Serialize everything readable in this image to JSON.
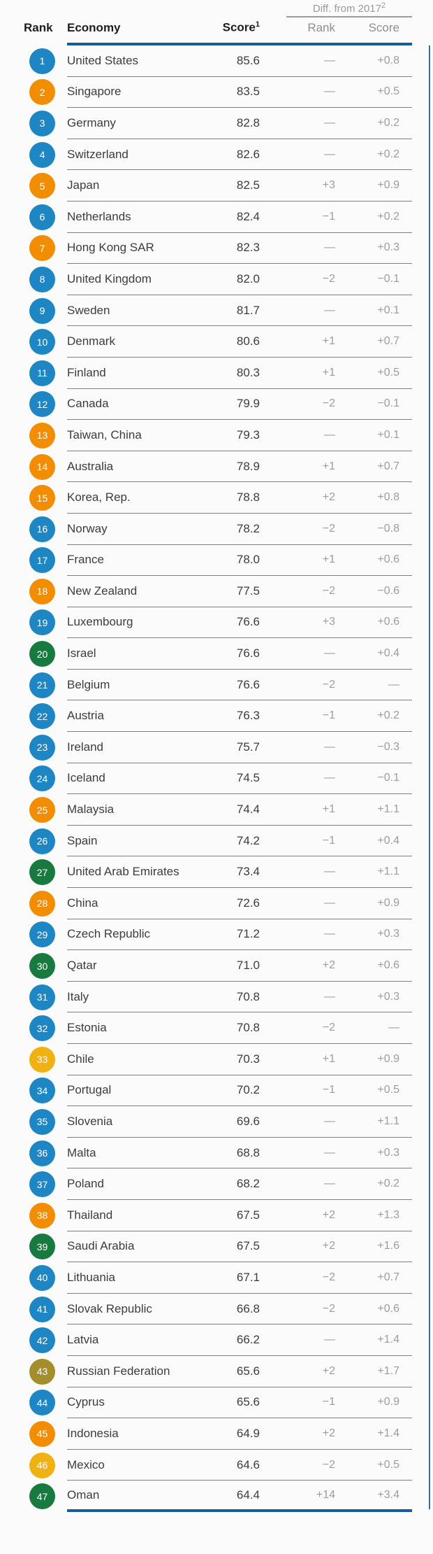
{
  "header": {
    "rank": "Rank",
    "economy": "Economy",
    "score": "Score",
    "score_sup": "1",
    "diff_label": "Diff. from 2017",
    "diff_sup": "2",
    "diff_rank": "Rank",
    "diff_score": "Score"
  },
  "colors": {
    "blue": "#1f86c4",
    "orange": "#f28d00",
    "green": "#187a3e",
    "yellow": "#f0b212",
    "olive": "#a48e2c",
    "rule_blue": "#1a5c96",
    "separator_gray": "#7f7f7f",
    "diff_text_gray": "#9c9c9c"
  },
  "chart_data": {
    "type": "table",
    "columns": [
      "Rank",
      "Economy",
      "Score1",
      "Diff. from 2017 Rank",
      "Diff. from 2017 Score"
    ],
    "rows": [
      {
        "rank": "1",
        "economy": "United States",
        "score": "85.6",
        "diff_rank": "—",
        "diff_score": "+0.8",
        "color": "blue"
      },
      {
        "rank": "2",
        "economy": "Singapore",
        "score": "83.5",
        "diff_rank": "—",
        "diff_score": "+0.5",
        "color": "orange"
      },
      {
        "rank": "3",
        "economy": "Germany",
        "score": "82.8",
        "diff_rank": "—",
        "diff_score": "+0.2",
        "color": "blue"
      },
      {
        "rank": "4",
        "economy": "Switzerland",
        "score": "82.6",
        "diff_rank": "—",
        "diff_score": "+0.2",
        "color": "blue"
      },
      {
        "rank": "5",
        "economy": "Japan",
        "score": "82.5",
        "diff_rank": "+3",
        "diff_score": "+0.9",
        "color": "orange"
      },
      {
        "rank": "6",
        "economy": "Netherlands",
        "score": "82.4",
        "diff_rank": "−1",
        "diff_score": "+0.2",
        "color": "blue"
      },
      {
        "rank": "7",
        "economy": "Hong Kong SAR",
        "score": "82.3",
        "diff_rank": "—",
        "diff_score": "+0.3",
        "color": "orange"
      },
      {
        "rank": "8",
        "economy": "United Kingdom",
        "score": "82.0",
        "diff_rank": "−2",
        "diff_score": "−0.1",
        "color": "blue"
      },
      {
        "rank": "9",
        "economy": "Sweden",
        "score": "81.7",
        "diff_rank": "—",
        "diff_score": "+0.1",
        "color": "blue"
      },
      {
        "rank": "10",
        "economy": "Denmark",
        "score": "80.6",
        "diff_rank": "+1",
        "diff_score": "+0.7",
        "color": "blue"
      },
      {
        "rank": "11",
        "economy": "Finland",
        "score": "80.3",
        "diff_rank": "+1",
        "diff_score": "+0.5",
        "color": "blue"
      },
      {
        "rank": "12",
        "economy": "Canada",
        "score": "79.9",
        "diff_rank": "−2",
        "diff_score": "−0.1",
        "color": "blue"
      },
      {
        "rank": "13",
        "economy": "Taiwan, China",
        "score": "79.3",
        "diff_rank": "—",
        "diff_score": "+0.1",
        "color": "orange"
      },
      {
        "rank": "14",
        "economy": "Australia",
        "score": "78.9",
        "diff_rank": "+1",
        "diff_score": "+0.7",
        "color": "orange"
      },
      {
        "rank": "15",
        "economy": "Korea, Rep.",
        "score": "78.8",
        "diff_rank": "+2",
        "diff_score": "+0.8",
        "color": "orange"
      },
      {
        "rank": "16",
        "economy": "Norway",
        "score": "78.2",
        "diff_rank": "−2",
        "diff_score": "−0.8",
        "color": "blue"
      },
      {
        "rank": "17",
        "economy": "France",
        "score": "78.0",
        "diff_rank": "+1",
        "diff_score": "+0.6",
        "color": "blue"
      },
      {
        "rank": "18",
        "economy": "New Zealand",
        "score": "77.5",
        "diff_rank": "−2",
        "diff_score": "−0.6",
        "color": "orange"
      },
      {
        "rank": "19",
        "economy": "Luxembourg",
        "score": "76.6",
        "diff_rank": "+3",
        "diff_score": "+0.6",
        "color": "blue"
      },
      {
        "rank": "20",
        "economy": "Israel",
        "score": "76.6",
        "diff_rank": "—",
        "diff_score": "+0.4",
        "color": "green"
      },
      {
        "rank": "21",
        "economy": "Belgium",
        "score": "76.6",
        "diff_rank": "−2",
        "diff_score": "—",
        "color": "blue"
      },
      {
        "rank": "22",
        "economy": "Austria",
        "score": "76.3",
        "diff_rank": "−1",
        "diff_score": "+0.2",
        "color": "blue"
      },
      {
        "rank": "23",
        "economy": "Ireland",
        "score": "75.7",
        "diff_rank": "—",
        "diff_score": "−0.3",
        "color": "blue"
      },
      {
        "rank": "24",
        "economy": "Iceland",
        "score": "74.5",
        "diff_rank": "—",
        "diff_score": "−0.1",
        "color": "blue"
      },
      {
        "rank": "25",
        "economy": "Malaysia",
        "score": "74.4",
        "diff_rank": "+1",
        "diff_score": "+1.1",
        "color": "orange"
      },
      {
        "rank": "26",
        "economy": "Spain",
        "score": "74.2",
        "diff_rank": "−1",
        "diff_score": "+0.4",
        "color": "blue"
      },
      {
        "rank": "27",
        "economy": "United Arab Emirates",
        "score": "73.4",
        "diff_rank": "—",
        "diff_score": "+1.1",
        "color": "green"
      },
      {
        "rank": "28",
        "economy": "China",
        "score": "72.6",
        "diff_rank": "—",
        "diff_score": "+0.9",
        "color": "orange"
      },
      {
        "rank": "29",
        "economy": "Czech Republic",
        "score": "71.2",
        "diff_rank": "—",
        "diff_score": "+0.3",
        "color": "blue"
      },
      {
        "rank": "30",
        "economy": "Qatar",
        "score": "71.0",
        "diff_rank": "+2",
        "diff_score": "+0.6",
        "color": "green"
      },
      {
        "rank": "31",
        "economy": "Italy",
        "score": "70.8",
        "diff_rank": "—",
        "diff_score": "+0.3",
        "color": "blue"
      },
      {
        "rank": "32",
        "economy": "Estonia",
        "score": "70.8",
        "diff_rank": "−2",
        "diff_score": "—",
        "color": "blue"
      },
      {
        "rank": "33",
        "economy": "Chile",
        "score": "70.3",
        "diff_rank": "+1",
        "diff_score": "+0.9",
        "color": "yellow"
      },
      {
        "rank": "34",
        "economy": "Portugal",
        "score": "70.2",
        "diff_rank": "−1",
        "diff_score": "+0.5",
        "color": "blue"
      },
      {
        "rank": "35",
        "economy": "Slovenia",
        "score": "69.6",
        "diff_rank": "—",
        "diff_score": "+1.1",
        "color": "blue"
      },
      {
        "rank": "36",
        "economy": "Malta",
        "score": "68.8",
        "diff_rank": "—",
        "diff_score": "+0.3",
        "color": "blue"
      },
      {
        "rank": "37",
        "economy": "Poland",
        "score": "68.2",
        "diff_rank": "—",
        "diff_score": "+0.2",
        "color": "blue"
      },
      {
        "rank": "38",
        "economy": "Thailand",
        "score": "67.5",
        "diff_rank": "+2",
        "diff_score": "+1.3",
        "color": "orange"
      },
      {
        "rank": "39",
        "economy": "Saudi Arabia",
        "score": "67.5",
        "diff_rank": "+2",
        "diff_score": "+1.6",
        "color": "green"
      },
      {
        "rank": "40",
        "economy": "Lithuania",
        "score": "67.1",
        "diff_rank": "−2",
        "diff_score": "+0.7",
        "color": "blue"
      },
      {
        "rank": "41",
        "economy": "Slovak Republic",
        "score": "66.8",
        "diff_rank": "−2",
        "diff_score": "+0.6",
        "color": "blue"
      },
      {
        "rank": "42",
        "economy": "Latvia",
        "score": "66.2",
        "diff_rank": "—",
        "diff_score": "+1.4",
        "color": "blue"
      },
      {
        "rank": "43",
        "economy": "Russian Federation",
        "score": "65.6",
        "diff_rank": "+2",
        "diff_score": "+1.7",
        "color": "olive"
      },
      {
        "rank": "44",
        "economy": "Cyprus",
        "score": "65.6",
        "diff_rank": "−1",
        "diff_score": "+0.9",
        "color": "blue"
      },
      {
        "rank": "45",
        "economy": "Indonesia",
        "score": "64.9",
        "diff_rank": "+2",
        "diff_score": "+1.4",
        "color": "orange"
      },
      {
        "rank": "46",
        "economy": "Mexico",
        "score": "64.6",
        "diff_rank": "−2",
        "diff_score": "+0.5",
        "color": "yellow"
      },
      {
        "rank": "47",
        "economy": "Oman",
        "score": "64.4",
        "diff_rank": "+14",
        "diff_score": "+3.4",
        "color": "green"
      }
    ]
  }
}
